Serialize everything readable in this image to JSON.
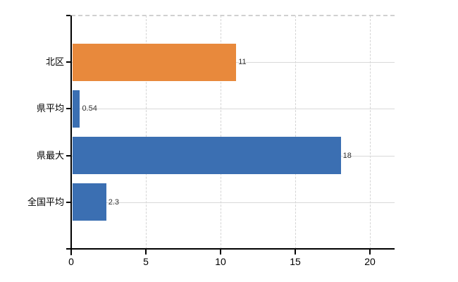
{
  "chart_data": {
    "type": "bar",
    "orientation": "horizontal",
    "title": "",
    "xlabel": "",
    "ylabel": "",
    "categories": [
      "北区",
      "県平均",
      "県最大",
      "全国平均"
    ],
    "values": [
      11,
      0.54,
      18,
      2.3
    ],
    "value_labels": [
      "11",
      "0.54",
      "18",
      "2.3"
    ],
    "bar_colors": [
      "#e8893c",
      "#3b6fb2",
      "#3b6fb2",
      "#3b6fb2"
    ],
    "x_ticks": [
      0,
      5,
      10,
      15,
      20
    ],
    "x_tick_labels": [
      "0",
      "5",
      "10",
      "15",
      "20"
    ],
    "xlim": [
      0,
      21.65
    ],
    "grid": true,
    "grid_vertical_style": "dashed",
    "grid_horizontal_style": "solid",
    "legend_position": "none"
  },
  "colors": {
    "background": "#ffffff",
    "axis": "#000000",
    "gridline": "#d9d9d9",
    "value_label": "#333333",
    "bar_blue": "#3b6fb2",
    "bar_orange": "#e8893c"
  }
}
